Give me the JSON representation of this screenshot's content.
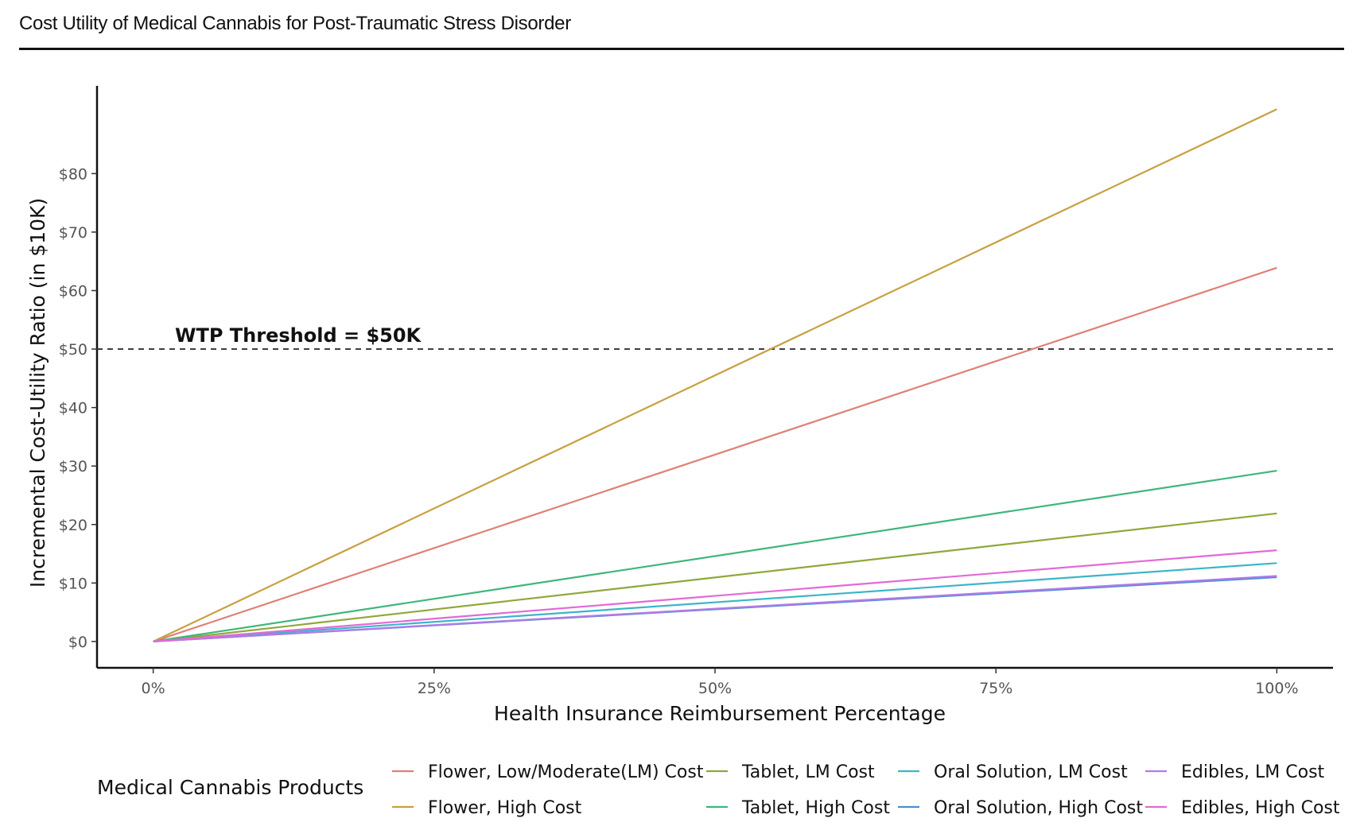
{
  "header": {
    "title": "Cost Utility of Medical Cannabis for Post-Traumatic Stress Disorder"
  },
  "chart_data": {
    "type": "line",
    "title": "",
    "xlabel": "Health Insurance Reimbursement Percentage",
    "ylabel": "Incremental Cost-Utility Ratio (in $10K)",
    "x": [
      0,
      100
    ],
    "xlim": [
      -5,
      105
    ],
    "ylim": [
      -4.5,
      95
    ],
    "xticks": [
      0,
      25,
      50,
      75,
      100
    ],
    "xtick_labels": [
      "0%",
      "25%",
      "50%",
      "75%",
      "100%"
    ],
    "yticks": [
      0,
      10,
      20,
      30,
      40,
      50,
      60,
      70,
      80
    ],
    "ytick_labels": [
      "$0",
      "$10",
      "$20",
      "$30",
      "$40",
      "$50",
      "$60",
      "$70",
      "$80"
    ],
    "threshold": {
      "value": 50,
      "label": "WTP Threshold = $50K"
    },
    "legend_title": "Medical Cannabis Products",
    "series": [
      {
        "name": "Flower, Low/Moderate(LM) Cost",
        "color": "#e08078",
        "values": [
          0,
          63.9
        ]
      },
      {
        "name": "Flower, High Cost",
        "color": "#c9a040",
        "values": [
          0,
          91
        ]
      },
      {
        "name": "Tablet, LM Cost",
        "color": "#8ea83a",
        "values": [
          0,
          21.9
        ]
      },
      {
        "name": "Tablet, High Cost",
        "color": "#3fb67a",
        "values": [
          0,
          29.2
        ]
      },
      {
        "name": "Oral Solution, LM Cost",
        "color": "#3cb5c9",
        "values": [
          0,
          13.4
        ]
      },
      {
        "name": "Oral Solution, High Cost",
        "color": "#4a8fd8",
        "values": [
          0,
          11
        ]
      },
      {
        "name": "Edibles, LM Cost",
        "color": "#b27ae8",
        "values": [
          0,
          11.2
        ]
      },
      {
        "name": "Edibles, High Cost",
        "color": "#e26ad6",
        "values": [
          0,
          15.6
        ]
      }
    ]
  }
}
